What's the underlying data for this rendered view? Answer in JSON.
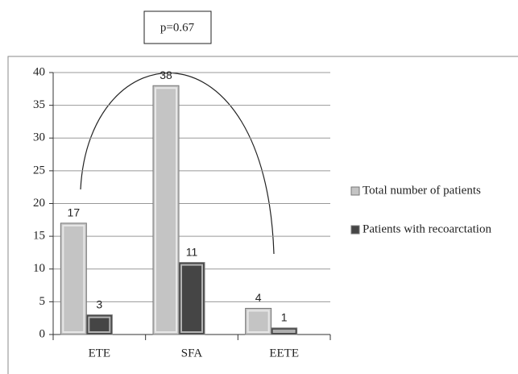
{
  "chart_data": {
    "type": "bar",
    "annotation": "p=0.67",
    "categories": [
      "ETE",
      "SFA",
      "EETE"
    ],
    "series": [
      {
        "name": "Total number of patients",
        "color": "#c4c4c4",
        "values": [
          17,
          38,
          4
        ]
      },
      {
        "name": "Patients with recoarctation",
        "color": "#454545",
        "values": [
          3,
          11,
          1
        ]
      }
    ],
    "ylim": [
      0,
      40
    ],
    "yticks": [
      0,
      5,
      10,
      15,
      20,
      25,
      30,
      35,
      40
    ],
    "grid": true,
    "legend": "right"
  }
}
